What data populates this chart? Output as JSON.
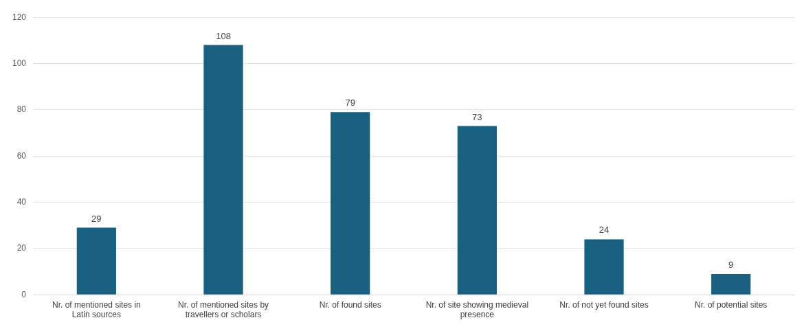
{
  "chart_data": {
    "type": "bar",
    "categories": [
      "Nr. of mentioned sites in Latin sources",
      "Nr. of mentioned sites by travellers or scholars",
      "Nr. of found sites",
      "Nr. of site showing medieval presence",
      "Nr. of not yet found sites",
      "Nr. of potential sites"
    ],
    "values": [
      29,
      108,
      79,
      73,
      24,
      9
    ],
    "color": "#17607f",
    "ylim": [
      0,
      120
    ],
    "yticks": [
      0,
      20,
      40,
      60,
      80,
      100,
      120
    ],
    "grid": "y",
    "data_labels": true,
    "legend": false
  }
}
